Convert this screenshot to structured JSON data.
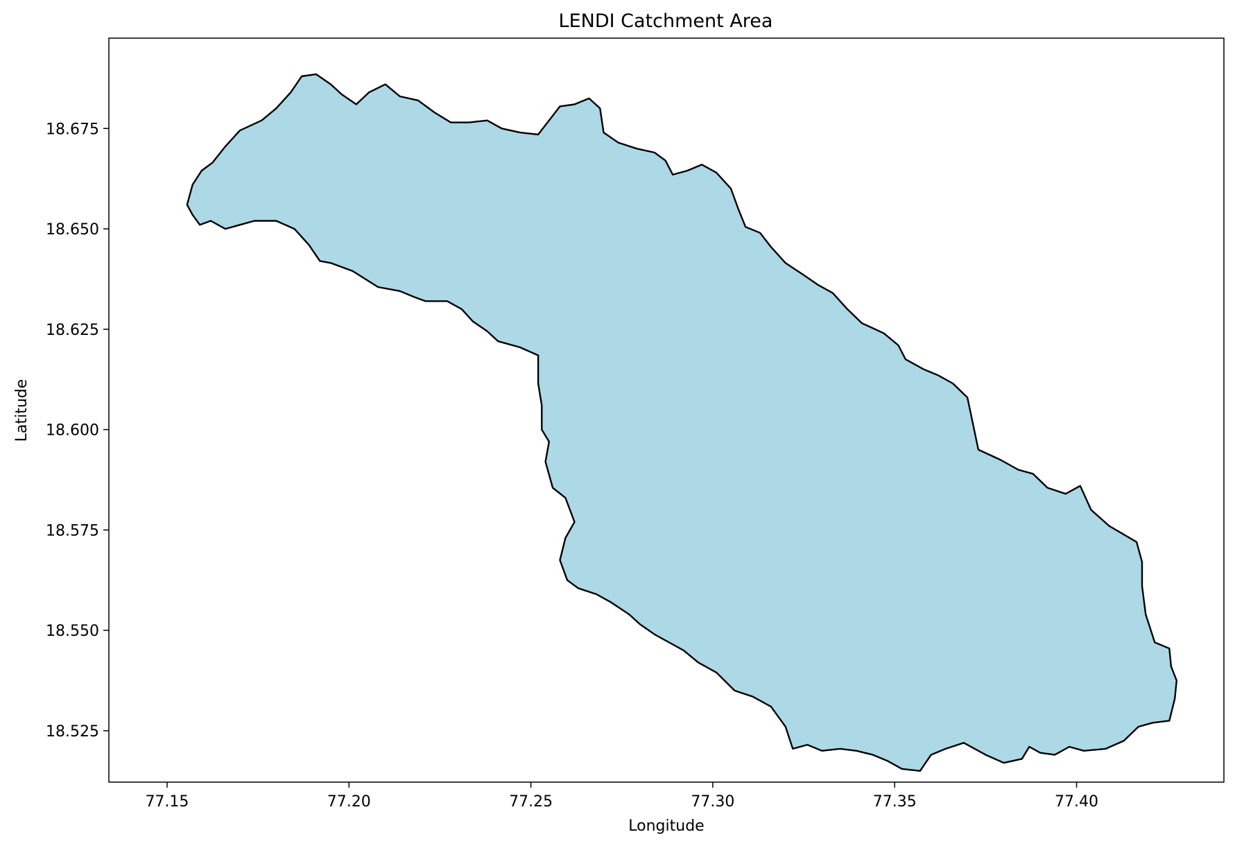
{
  "chart_data": {
    "type": "map",
    "title": "LENDI Catchment Area",
    "xlabel": "Longitude",
    "ylabel": "Latitude",
    "xlim": [
      77.134,
      77.4405
    ],
    "ylim": [
      18.5122,
      18.6975
    ],
    "x_ticks": [
      77.15,
      77.2,
      77.25,
      77.3,
      77.35,
      77.4
    ],
    "x_tick_labels": [
      "77.15",
      "77.20",
      "77.25",
      "77.30",
      "77.35",
      "77.40"
    ],
    "y_ticks": [
      18.525,
      18.55,
      18.575,
      18.6,
      18.625,
      18.65,
      18.675
    ],
    "y_tick_labels": [
      "18.525",
      "18.550",
      "18.575",
      "18.600",
      "18.625",
      "18.650",
      "18.675"
    ],
    "grid": false,
    "legend": "none",
    "fill_color": "#add8e6",
    "edge_color": "#000000",
    "boundary": [
      [
        77.1555,
        18.656
      ],
      [
        77.157,
        18.661
      ],
      [
        77.1595,
        18.6645
      ],
      [
        77.1625,
        18.6665
      ],
      [
        77.166,
        18.6705
      ],
      [
        77.17,
        18.6745
      ],
      [
        77.176,
        18.677
      ],
      [
        77.18,
        18.68
      ],
      [
        77.184,
        18.684
      ],
      [
        77.187,
        18.688
      ],
      [
        77.191,
        18.6885
      ],
      [
        77.195,
        18.686
      ],
      [
        77.198,
        18.6835
      ],
      [
        77.202,
        18.681
      ],
      [
        77.2055,
        18.684
      ],
      [
        77.21,
        18.686
      ],
      [
        77.214,
        18.683
      ],
      [
        77.219,
        18.682
      ],
      [
        77.2235,
        18.679
      ],
      [
        77.228,
        18.6765
      ],
      [
        77.233,
        18.6765
      ],
      [
        77.238,
        18.677
      ],
      [
        77.242,
        18.675
      ],
      [
        77.247,
        18.674
      ],
      [
        77.252,
        18.6735
      ],
      [
        77.255,
        18.677
      ],
      [
        77.258,
        18.6805
      ],
      [
        77.262,
        18.681
      ],
      [
        77.266,
        18.6825
      ],
      [
        77.269,
        18.68
      ],
      [
        77.27,
        18.674
      ],
      [
        77.274,
        18.6715
      ],
      [
        77.279,
        18.67
      ],
      [
        77.284,
        18.669
      ],
      [
        77.287,
        18.667
      ],
      [
        77.289,
        18.6635
      ],
      [
        77.293,
        18.6645
      ],
      [
        77.297,
        18.666
      ],
      [
        77.301,
        18.664
      ],
      [
        77.305,
        18.66
      ],
      [
        77.307,
        18.655
      ],
      [
        77.309,
        18.6505
      ],
      [
        77.313,
        18.649
      ],
      [
        77.316,
        18.6455
      ],
      [
        77.32,
        18.6415
      ],
      [
        77.325,
        18.6385
      ],
      [
        77.329,
        18.636
      ],
      [
        77.333,
        18.634
      ],
      [
        77.337,
        18.63
      ],
      [
        77.341,
        18.6265
      ],
      [
        77.347,
        18.624
      ],
      [
        77.351,
        18.621
      ],
      [
        77.353,
        18.6175
      ],
      [
        77.358,
        18.615
      ],
      [
        77.362,
        18.6135
      ],
      [
        77.366,
        18.6115
      ],
      [
        77.37,
        18.608
      ],
      [
        77.3715,
        18.6015
      ],
      [
        77.373,
        18.595
      ],
      [
        77.379,
        18.5925
      ],
      [
        77.384,
        18.59
      ],
      [
        77.388,
        18.589
      ],
      [
        77.392,
        18.5855
      ],
      [
        77.397,
        18.584
      ],
      [
        77.401,
        18.586
      ],
      [
        77.404,
        18.58
      ],
      [
        77.409,
        18.576
      ],
      [
        77.4165,
        18.572
      ],
      [
        77.418,
        18.567
      ],
      [
        77.418,
        18.561
      ],
      [
        77.419,
        18.554
      ],
      [
        77.4215,
        18.547
      ],
      [
        77.4255,
        18.5455
      ],
      [
        77.426,
        18.541
      ],
      [
        77.4275,
        18.5375
      ],
      [
        77.427,
        18.533
      ],
      [
        77.4255,
        18.5275
      ],
      [
        77.421,
        18.527
      ],
      [
        77.417,
        18.526
      ],
      [
        77.413,
        18.5225
      ],
      [
        77.408,
        18.5205
      ],
      [
        77.402,
        18.52
      ],
      [
        77.398,
        18.521
      ],
      [
        77.394,
        18.519
      ],
      [
        77.39,
        18.5195
      ],
      [
        77.387,
        18.521
      ],
      [
        77.385,
        18.518
      ],
      [
        77.38,
        18.517
      ],
      [
        77.375,
        18.519
      ],
      [
        77.369,
        18.522
      ],
      [
        77.364,
        18.5205
      ],
      [
        77.36,
        18.519
      ],
      [
        77.357,
        18.515
      ],
      [
        77.352,
        18.5155
      ],
      [
        77.348,
        18.5175
      ],
      [
        77.344,
        18.519
      ],
      [
        77.3395,
        18.52
      ],
      [
        77.335,
        18.5205
      ],
      [
        77.33,
        18.52
      ],
      [
        77.326,
        18.5215
      ],
      [
        77.322,
        18.5205
      ],
      [
        77.32,
        18.526
      ],
      [
        77.316,
        18.531
      ],
      [
        77.311,
        18.5335
      ],
      [
        77.306,
        18.535
      ],
      [
        77.301,
        18.5395
      ],
      [
        77.296,
        18.542
      ],
      [
        77.292,
        18.545
      ],
      [
        77.288,
        18.547
      ],
      [
        77.284,
        18.549
      ],
      [
        77.28,
        18.5515
      ],
      [
        77.277,
        18.554
      ],
      [
        77.272,
        18.557
      ],
      [
        77.268,
        18.559
      ],
      [
        77.263,
        18.5605
      ],
      [
        77.26,
        18.5625
      ],
      [
        77.258,
        18.5675
      ],
      [
        77.2595,
        18.573
      ],
      [
        77.262,
        18.577
      ],
      [
        77.2595,
        18.583
      ],
      [
        77.256,
        18.5855
      ],
      [
        77.254,
        18.592
      ],
      [
        77.255,
        18.597
      ],
      [
        77.253,
        18.6
      ],
      [
        77.253,
        18.606
      ],
      [
        77.252,
        18.6115
      ],
      [
        77.252,
        18.6185
      ],
      [
        77.247,
        18.6205
      ],
      [
        77.241,
        18.622
      ],
      [
        77.238,
        18.6245
      ],
      [
        77.234,
        18.627
      ],
      [
        77.231,
        18.63
      ],
      [
        77.227,
        18.632
      ],
      [
        77.221,
        18.632
      ],
      [
        77.218,
        18.633
      ],
      [
        77.214,
        18.6345
      ],
      [
        77.208,
        18.6355
      ],
      [
        77.201,
        18.6395
      ],
      [
        77.195,
        18.6415
      ],
      [
        77.192,
        18.642
      ],
      [
        77.189,
        18.646
      ],
      [
        77.185,
        18.65
      ],
      [
        77.18,
        18.652
      ],
      [
        77.174,
        18.652
      ],
      [
        77.17,
        18.651
      ],
      [
        77.166,
        18.65
      ],
      [
        77.162,
        18.652
      ],
      [
        77.159,
        18.651
      ],
      [
        77.157,
        18.6535
      ]
    ]
  }
}
